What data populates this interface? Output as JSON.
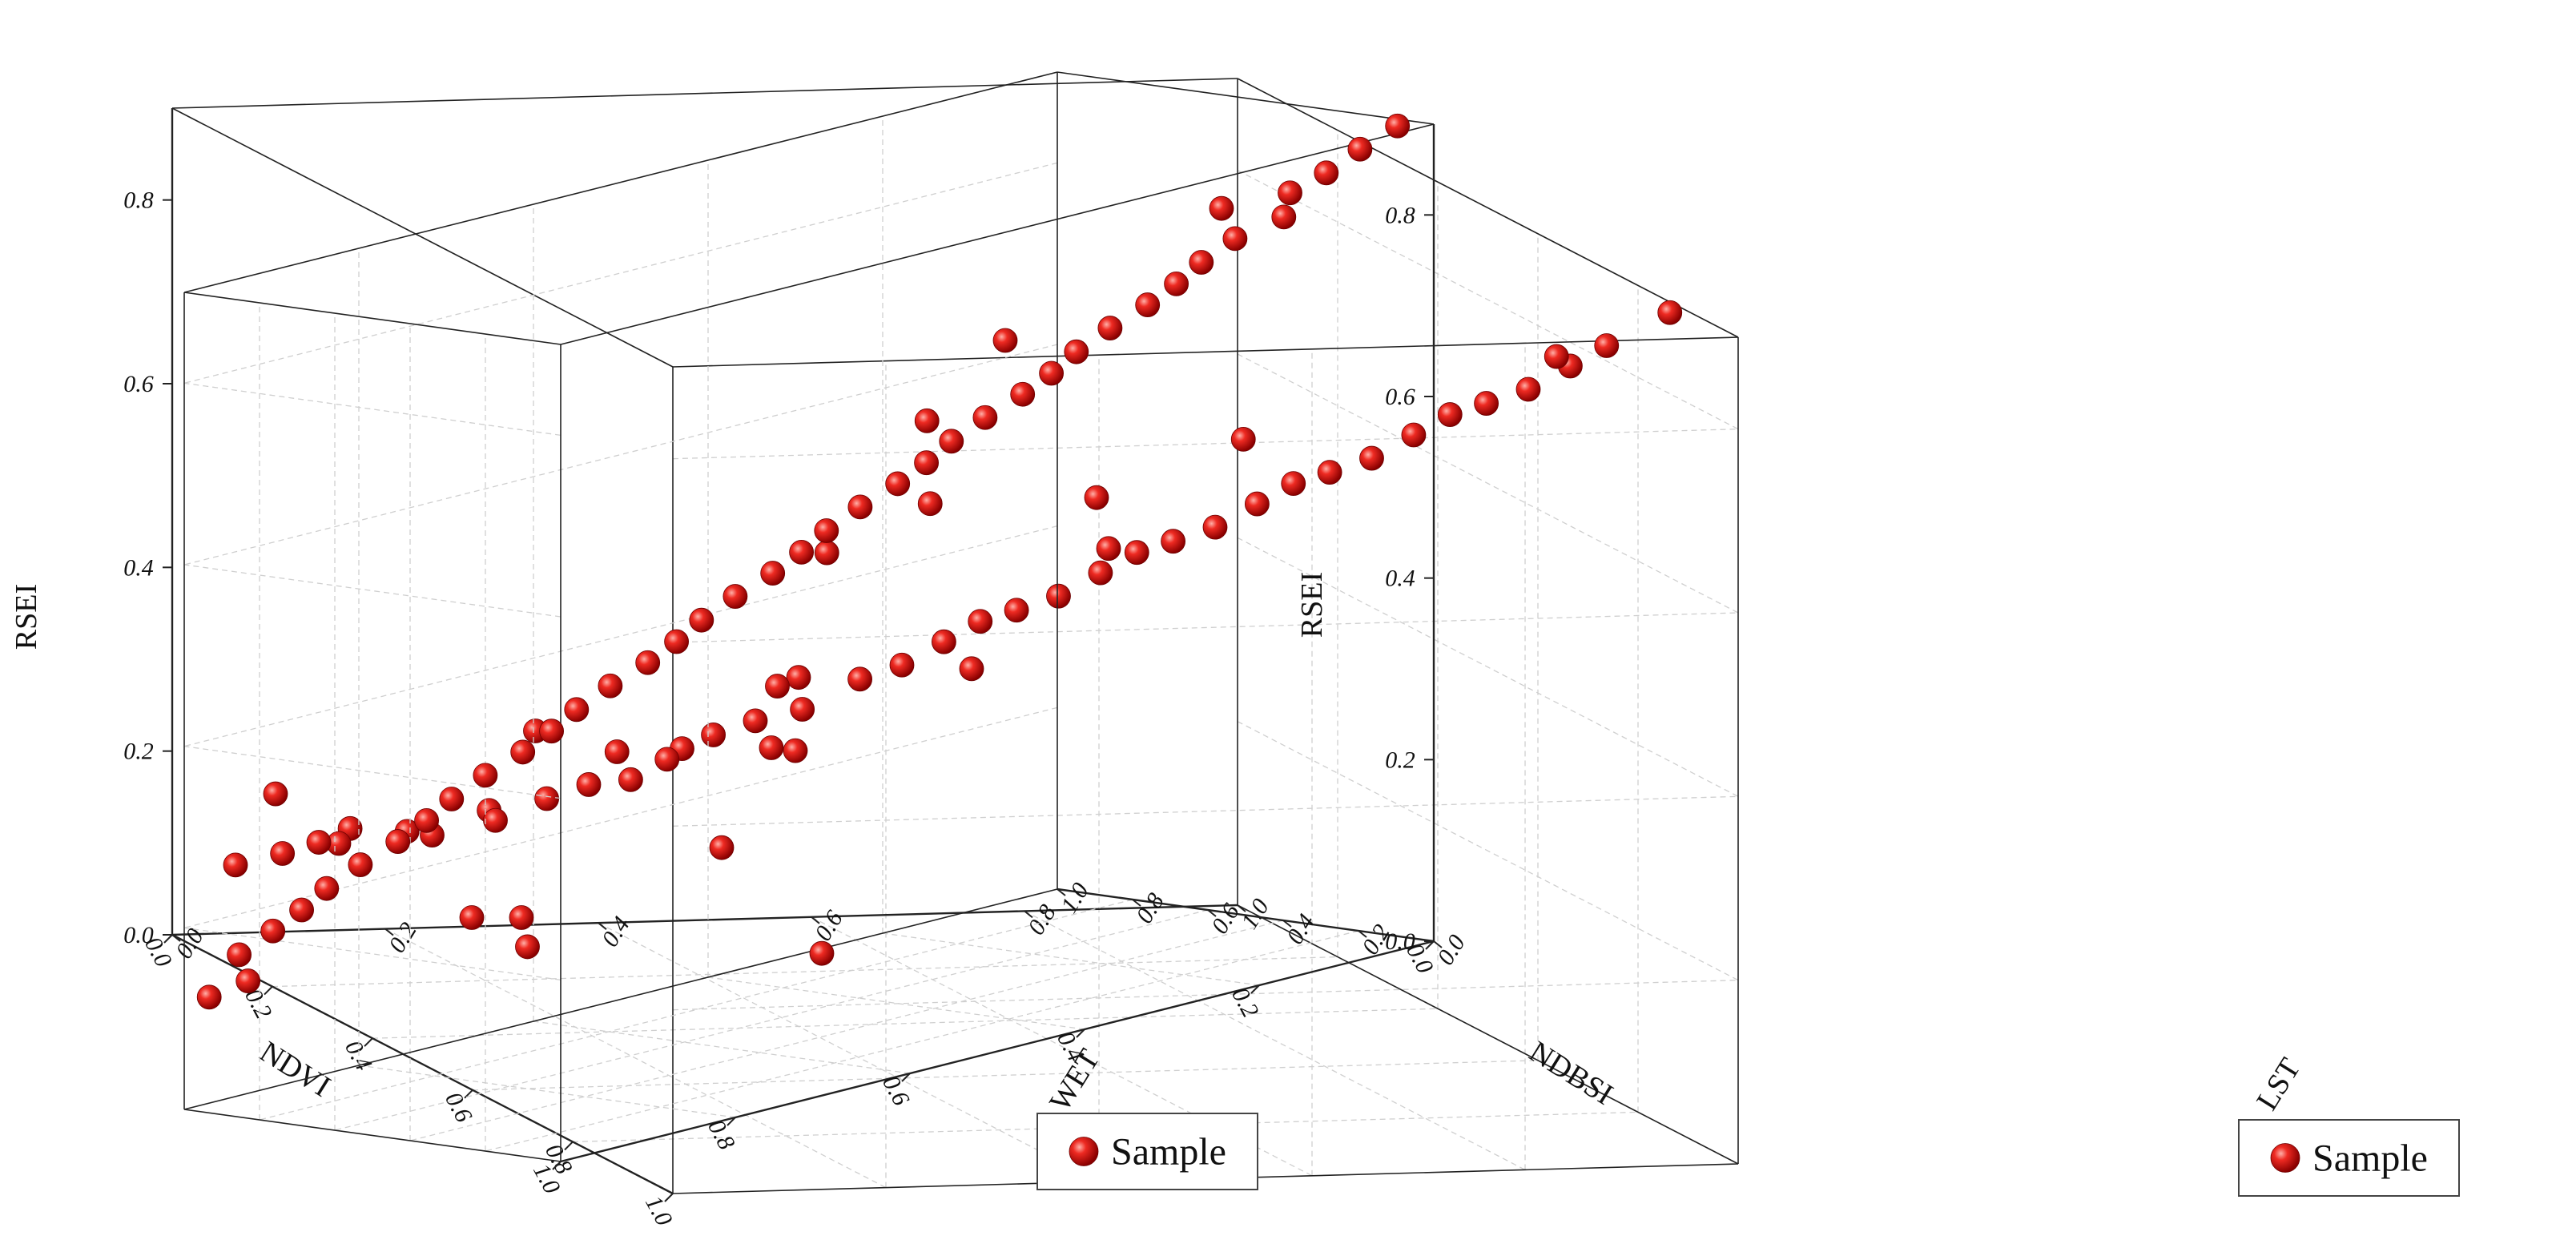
{
  "chart_data": [
    {
      "type": "scatter3d",
      "xlabel": "NDVI",
      "ylabel": "WET",
      "zlabel": "RSEI",
      "xlim": [
        0,
        1
      ],
      "ylim": [
        0,
        1
      ],
      "zlim": [
        0,
        0.9
      ],
      "xticks": [
        "0.0",
        "0.2",
        "0.4",
        "0.6",
        "0.8",
        "1.0"
      ],
      "yticks": [
        "0.0",
        "0.2",
        "0.4",
        "0.6",
        "0.8",
        "1.0"
      ],
      "zticks": [
        "0.0",
        "0.2",
        "0.4",
        "0.6",
        "0.8"
      ],
      "legend": {
        "label": "Sample",
        "position": "bottom-right"
      },
      "series": [
        {
          "name": "Sample",
          "color": "#e01b1b",
          "points": [
            [
              0.02,
              0.05,
              0.08
            ],
            [
              0.05,
              0.08,
              0.1
            ],
            [
              0.08,
              0.1,
              0.12
            ],
            [
              0.1,
              0.12,
              0.14
            ],
            [
              0.12,
              0.1,
              0.13
            ],
            [
              0.15,
              0.15,
              0.15
            ],
            [
              0.1,
              0.05,
              0.18
            ],
            [
              0.2,
              0.15,
              0.16
            ],
            [
              0.22,
              0.2,
              0.18
            ],
            [
              0.25,
              0.18,
              0.2
            ],
            [
              0.28,
              0.22,
              0.22
            ],
            [
              0.3,
              0.25,
              0.24
            ],
            [
              0.32,
              0.28,
              0.25
            ],
            [
              0.35,
              0.3,
              0.28
            ],
            [
              0.3,
              0.2,
              0.3
            ],
            [
              0.38,
              0.3,
              0.3
            ],
            [
              0.4,
              0.32,
              0.32
            ],
            [
              0.42,
              0.35,
              0.34
            ],
            [
              0.45,
              0.38,
              0.36
            ],
            [
              0.4,
              0.4,
              0.38
            ],
            [
              0.48,
              0.42,
              0.4
            ],
            [
              0.5,
              0.45,
              0.42
            ],
            [
              0.52,
              0.48,
              0.45
            ],
            [
              0.55,
              0.5,
              0.48
            ],
            [
              0.58,
              0.52,
              0.5
            ],
            [
              0.6,
              0.55,
              0.52
            ],
            [
              0.62,
              0.58,
              0.55
            ],
            [
              0.65,
              0.6,
              0.58
            ],
            [
              0.68,
              0.62,
              0.6
            ],
            [
              0.7,
              0.65,
              0.62
            ],
            [
              0.72,
              0.68,
              0.65
            ],
            [
              0.75,
              0.7,
              0.68
            ],
            [
              0.78,
              0.72,
              0.7
            ],
            [
              0.8,
              0.75,
              0.72
            ],
            [
              0.82,
              0.78,
              0.75
            ],
            [
              0.85,
              0.8,
              0.78
            ],
            [
              0.88,
              0.82,
              0.8
            ],
            [
              0.9,
              0.85,
              0.82
            ],
            [
              0.92,
              0.88,
              0.85
            ],
            [
              0.95,
              0.9,
              0.88
            ],
            [
              0.6,
              0.5,
              0.8
            ],
            [
              0.55,
              0.45,
              0.7
            ],
            [
              0.35,
              0.45,
              0.5
            ],
            [
              0.45,
              0.5,
              0.58
            ],
            [
              0.25,
              0.3,
              0.26
            ],
            [
              0.5,
              0.35,
              0.33
            ],
            [
              0.65,
              0.7,
              0.7
            ],
            [
              0.7,
              0.55,
              0.6
            ],
            [
              0.85,
              0.9,
              0.84
            ],
            [
              0.97,
              0.95,
              0.92
            ]
          ]
        }
      ]
    },
    {
      "type": "scatter3d",
      "xlabel": "NDBSI",
      "ylabel": "LST",
      "zlabel": "RSEI",
      "xlim": [
        0,
        1
      ],
      "ylim": [
        0,
        1
      ],
      "zlim": [
        0,
        0.9
      ],
      "xticks": [
        "0.0",
        "0.2",
        "0.4",
        "0.6",
        "0.8",
        "1.0"
      ],
      "yticks": [
        "0.0",
        "0.2",
        "0.4",
        "0.6",
        "0.8",
        "1.0"
      ],
      "zticks": [
        "0.0",
        "0.2",
        "0.4",
        "0.6",
        "0.8"
      ],
      "legend": {
        "label": "Sample",
        "position": "bottom-right"
      },
      "series": [
        {
          "name": "Sample",
          "color": "#e01b1b",
          "points": [
            [
              0.02,
              0.05,
              0.9
            ],
            [
              0.05,
              0.08,
              0.88
            ],
            [
              0.08,
              0.1,
              0.86
            ],
            [
              0.1,
              0.15,
              0.84
            ],
            [
              0.12,
              0.12,
              0.82
            ],
            [
              0.15,
              0.18,
              0.8
            ],
            [
              0.18,
              0.2,
              0.78
            ],
            [
              0.2,
              0.22,
              0.76
            ],
            [
              0.22,
              0.25,
              0.74
            ],
            [
              0.25,
              0.28,
              0.72
            ],
            [
              0.28,
              0.3,
              0.7
            ],
            [
              0.3,
              0.32,
              0.68
            ],
            [
              0.32,
              0.35,
              0.66
            ],
            [
              0.35,
              0.38,
              0.64
            ],
            [
              0.38,
              0.4,
              0.62
            ],
            [
              0.4,
              0.42,
              0.6
            ],
            [
              0.42,
              0.45,
              0.58
            ],
            [
              0.45,
              0.48,
              0.56
            ],
            [
              0.48,
              0.5,
              0.54
            ],
            [
              0.5,
              0.52,
              0.52
            ],
            [
              0.52,
              0.55,
              0.5
            ],
            [
              0.55,
              0.58,
              0.48
            ],
            [
              0.58,
              0.6,
              0.46
            ],
            [
              0.6,
              0.62,
              0.44
            ],
            [
              0.62,
              0.65,
              0.42
            ],
            [
              0.65,
              0.68,
              0.4
            ],
            [
              0.68,
              0.7,
              0.38
            ],
            [
              0.7,
              0.72,
              0.36
            ],
            [
              0.72,
              0.75,
              0.34
            ],
            [
              0.75,
              0.78,
              0.32
            ],
            [
              0.78,
              0.8,
              0.3
            ],
            [
              0.8,
              0.82,
              0.28
            ],
            [
              0.82,
              0.85,
              0.26
            ],
            [
              0.85,
              0.88,
              0.24
            ],
            [
              0.88,
              0.9,
              0.22
            ],
            [
              0.9,
              0.92,
              0.2
            ],
            [
              0.92,
              0.95,
              0.18
            ],
            [
              0.95,
              0.97,
              0.16
            ],
            [
              0.97,
              0.9,
              0.14
            ],
            [
              0.98,
              0.98,
              0.12
            ],
            [
              0.3,
              0.2,
              0.55
            ],
            [
              0.4,
              0.3,
              0.38
            ],
            [
              0.5,
              0.6,
              0.3
            ],
            [
              0.6,
              0.5,
              0.22
            ],
            [
              0.7,
              0.8,
              0.15
            ],
            [
              0.8,
              0.7,
              0.18
            ],
            [
              0.65,
              0.9,
              0.1
            ],
            [
              0.55,
              0.35,
              0.1
            ],
            [
              0.2,
              0.1,
              0.85
            ],
            [
              0.45,
              0.7,
              0.35
            ]
          ]
        }
      ]
    }
  ]
}
